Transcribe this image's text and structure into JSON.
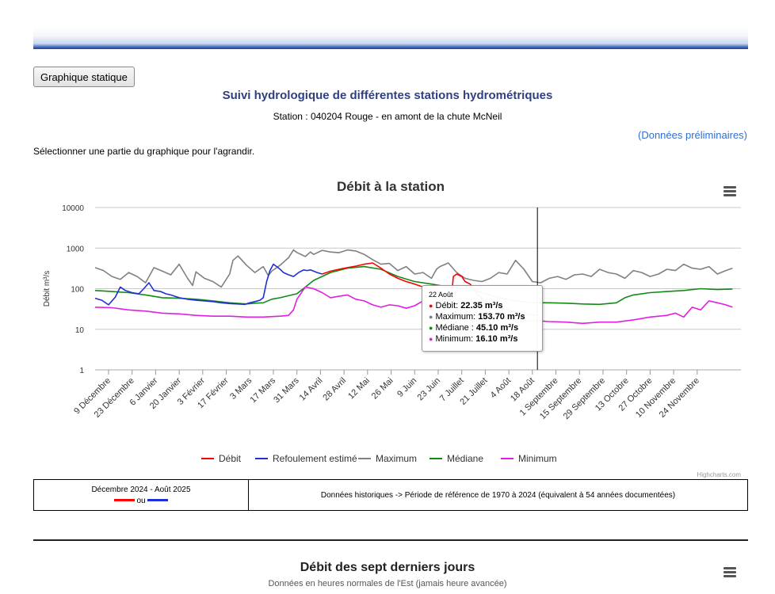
{
  "page": {
    "static_button": "Graphique statique",
    "title": "Suivi hydrologique de différentes stations hydrométriques",
    "station": "Station : 040204 Rouge - en amont de la chute McNeil",
    "preliminary": "(Données préliminaires)",
    "instruction": "Sélectionner une partie du graphique pour l'agrandir."
  },
  "chart_data": {
    "type": "line",
    "title": "Débit à la station",
    "ylabel": "Débit m³/s",
    "yscale": "log",
    "ylim": [
      1,
      10000
    ],
    "yticks": [
      "10000",
      "1000",
      "100",
      "10",
      "1"
    ],
    "xlim": [
      0,
      384
    ],
    "categories": [
      "9 Décembre",
      "23 Décembre",
      "6 Janvier",
      "20 Janvier",
      "3 Février",
      "17 Février",
      "3 Mars",
      "17 Mars",
      "31 Mars",
      "14 Avril",
      "28 Avril",
      "12 Mai",
      "26 Mai",
      "9 Juin",
      "23 Juin",
      "7 Juillet",
      "21 Juillet",
      "4 Août",
      "18 Août",
      "1 Septembre",
      "15 Septembre",
      "29 Septembre",
      "13 Octobre",
      "27 Octobre",
      "10 Novembre",
      "24 Novembre"
    ],
    "category_x": [
      8,
      22,
      36,
      50,
      64,
      78,
      92,
      106,
      120,
      134,
      148,
      162,
      176,
      190,
      204,
      218,
      232,
      246,
      260,
      274,
      288,
      302,
      316,
      330,
      344,
      358
    ],
    "credit": "Highcharts.com",
    "legend_position": "bottom",
    "series": [
      {
        "name": "Débit",
        "color": "#ff0000",
        "x": [
          135,
          140,
          145,
          150,
          155,
          160,
          165,
          170,
          175,
          180,
          185,
          190,
          195,
          200,
          205,
          210,
          212,
          213,
          215,
          218,
          220,
          223,
          225,
          227,
          230,
          232,
          235,
          240,
          245,
          250,
          255,
          258,
          260,
          262,
          263
        ],
        "values": [
          230,
          270,
          300,
          330,
          360,
          400,
          430,
          320,
          230,
          180,
          150,
          130,
          110,
          92,
          80,
          72,
          68,
          200,
          230,
          200,
          150,
          130,
          100,
          75,
          58,
          48,
          40,
          34,
          30,
          26,
          24,
          23,
          22.35,
          22.4,
          22.35
        ]
      },
      {
        "name": "Refoulement estimé",
        "color": "#1f2fd6",
        "x": [
          0,
          4,
          8,
          12,
          15,
          18,
          22,
          26,
          29,
          32,
          35,
          39,
          42,
          45,
          50,
          55,
          60,
          65,
          70,
          75,
          80,
          85,
          89,
          92,
          95,
          98,
          100,
          102,
          104,
          106,
          108,
          110,
          112,
          115,
          118,
          121,
          124,
          126,
          128,
          130,
          132,
          135
        ],
        "values": [
          58,
          52,
          40,
          62,
          110,
          90,
          80,
          75,
          100,
          140,
          90,
          85,
          75,
          70,
          60,
          55,
          52,
          50,
          48,
          45,
          43,
          42,
          41,
          45,
          48,
          52,
          60,
          150,
          280,
          400,
          350,
          300,
          250,
          220,
          200,
          250,
          290,
          280,
          290,
          270,
          250,
          230
        ]
      },
      {
        "name": "Maximum",
        "color": "#808080",
        "x": [
          0,
          5,
          10,
          15,
          20,
          25,
          30,
          35,
          40,
          45,
          50,
          55,
          58,
          60,
          65,
          70,
          75,
          80,
          82,
          85,
          90,
          95,
          100,
          103,
          105,
          110,
          115,
          118,
          120,
          125,
          128,
          130,
          135,
          140,
          145,
          150,
          155,
          160,
          165,
          170,
          175,
          180,
          185,
          190,
          195,
          200,
          203,
          205,
          210,
          215,
          220,
          225,
          230,
          235,
          240,
          245,
          250,
          255,
          260,
          265,
          270,
          275,
          280,
          285,
          290,
          295,
          300,
          305,
          310,
          315,
          320,
          325,
          330,
          335,
          340,
          345,
          350,
          355,
          360,
          365,
          370,
          375,
          379
        ],
        "values": [
          330,
          280,
          200,
          170,
          250,
          200,
          140,
          330,
          270,
          220,
          400,
          180,
          120,
          260,
          180,
          150,
          110,
          230,
          500,
          640,
          380,
          250,
          350,
          210,
          270,
          380,
          580,
          900,
          780,
          620,
          800,
          700,
          880,
          800,
          770,
          900,
          850,
          700,
          520,
          400,
          420,
          280,
          350,
          230,
          250,
          180,
          300,
          350,
          430,
          250,
          180,
          160,
          150,
          180,
          250,
          230,
          500,
          300,
          150,
          140,
          180,
          200,
          170,
          220,
          230,
          200,
          300,
          250,
          230,
          180,
          280,
          250,
          200,
          230,
          300,
          280,
          400,
          320,
          300,
          350,
          230,
          280,
          320
        ]
      },
      {
        "name": "Médiane",
        "color": "#138a13",
        "x": [
          0,
          10,
          20,
          30,
          40,
          50,
          60,
          70,
          80,
          90,
          95,
          100,
          105,
          110,
          120,
          130,
          140,
          150,
          160,
          170,
          180,
          190,
          200,
          210,
          220,
          230,
          240,
          250,
          260,
          270,
          280,
          290,
          300,
          310,
          315,
          320,
          330,
          340,
          350,
          360,
          370,
          379
        ],
        "values": [
          90,
          85,
          80,
          70,
          60,
          58,
          55,
          50,
          45,
          42,
          44,
          45,
          55,
          60,
          75,
          160,
          250,
          320,
          350,
          300,
          200,
          150,
          130,
          110,
          100,
          80,
          60,
          50,
          45.1,
          45,
          44,
          42,
          41,
          45,
          60,
          70,
          80,
          85,
          90,
          100,
          95,
          98
        ]
      },
      {
        "name": "Minimum",
        "color": "#e020e0",
        "x": [
          0,
          10,
          20,
          30,
          40,
          50,
          60,
          70,
          80,
          90,
          100,
          110,
          115,
          118,
          120,
          125,
          130,
          135,
          140,
          145,
          150,
          155,
          160,
          165,
          170,
          175,
          180,
          185,
          190,
          195,
          200,
          205,
          210,
          215,
          220,
          225,
          230,
          235,
          240,
          245,
          250,
          255,
          260,
          265,
          270,
          280,
          290,
          300,
          310,
          315,
          320,
          330,
          340,
          345,
          350,
          355,
          360,
          365,
          370,
          375,
          379
        ],
        "values": [
          35,
          34,
          30,
          28,
          25,
          24,
          22,
          21,
          21,
          20,
          20,
          21,
          22,
          30,
          55,
          110,
          100,
          80,
          60,
          65,
          70,
          55,
          50,
          40,
          35,
          40,
          38,
          33,
          38,
          50,
          30,
          28,
          25,
          24,
          23,
          22,
          21,
          20,
          19,
          18,
          17,
          16.5,
          16.1,
          16,
          15.5,
          15,
          14,
          15,
          15,
          16,
          17,
          20,
          22,
          25,
          20,
          35,
          30,
          50,
          45,
          40,
          35
        ]
      }
    ],
    "annotations": {
      "crosshair_x": 263,
      "tooltip": {
        "date": "22 Août",
        "rows": [
          {
            "label": "Débit: ",
            "value": "22.35 m³/s",
            "color": "#ff0000"
          },
          {
            "label": "Maximum: ",
            "value": "153.70 m³/s",
            "color": "#808080"
          },
          {
            "label": "Médiane : ",
            "value": "45.10 m³/s",
            "color": "#138a13"
          },
          {
            "label": "Minimum: ",
            "value": "16.10 m³/s",
            "color": "#e020e0"
          }
        ]
      }
    }
  },
  "legend_table": {
    "period": "Décembre 2024 - Août 2025",
    "or_text": "ou",
    "historical": "Données historiques -> Période de référence de 1970 à 2024 (équivalent à 54 années documentées)",
    "red": "#ff0000",
    "blue": "#1f2fd6"
  },
  "section2": {
    "title": "Débit des sept derniers jours",
    "subtitle": "Données en heures normales de l'Est (jamais heure avancée)"
  },
  "icons": {
    "menu": "hamburger-menu-icon"
  }
}
